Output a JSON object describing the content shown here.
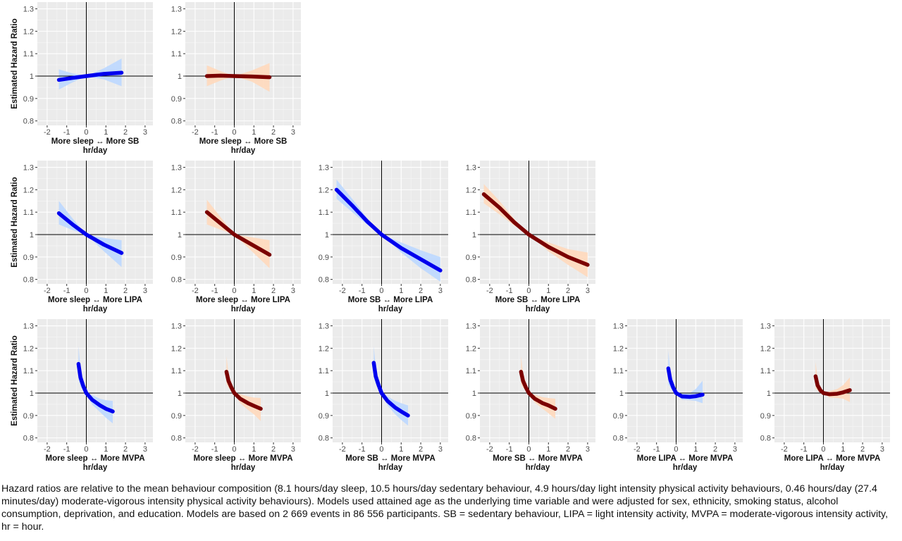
{
  "chart_data": [
    {
      "type": "line",
      "panel": "r1c1",
      "ylabel": "Estimated Hazard Ratio",
      "xlabel": "More sleep ↔ More SB",
      "xunit": "hr/day",
      "xlim": [
        -2.5,
        3.4
      ],
      "ylim": [
        0.78,
        1.33
      ],
      "xticks": [
        -2,
        -1,
        0,
        1,
        2,
        3
      ],
      "yticks": [
        0.8,
        0.9,
        1,
        1.1,
        1.2,
        1.3
      ],
      "color": "#0000ee",
      "band_color": "#bcd8ff",
      "x": [
        -1.4,
        -0.7,
        0,
        0.9,
        1.8
      ],
      "y": [
        0.983,
        0.992,
        1.0,
        1.01,
        1.015
      ],
      "lower": [
        0.94,
        0.972,
        1.0,
        0.985,
        0.955
      ],
      "upper": [
        1.03,
        1.012,
        1.0,
        1.035,
        1.078
      ]
    },
    {
      "type": "line",
      "panel": "r1c2",
      "ylabel": "",
      "xlabel": "More sleep ↔ More SB",
      "xunit": "hr/day",
      "xlim": [
        -2.5,
        3.4
      ],
      "ylim": [
        0.78,
        1.33
      ],
      "xticks": [
        -2,
        -1,
        0,
        1,
        2,
        3
      ],
      "yticks": [
        0.8,
        0.9,
        1,
        1.1,
        1.2,
        1.3
      ],
      "color": "#7b0000",
      "band_color": "#ffd9bd",
      "x": [
        -1.4,
        -0.7,
        0,
        0.9,
        1.8
      ],
      "y": [
        1.0,
        1.002,
        1.0,
        0.998,
        0.995
      ],
      "lower": [
        0.955,
        0.98,
        1.0,
        0.975,
        0.93
      ],
      "upper": [
        1.048,
        1.022,
        1.0,
        1.025,
        1.058
      ]
    },
    {
      "type": "line",
      "panel": "r2c1",
      "ylabel": "Estimated Hazard Ratio",
      "xlabel": "More sleep ↔ More LIPA",
      "xunit": "hr/day",
      "xlim": [
        -2.5,
        3.4
      ],
      "ylim": [
        0.78,
        1.33
      ],
      "xticks": [
        -2,
        -1,
        0,
        1,
        2,
        3
      ],
      "yticks": [
        0.8,
        0.9,
        1,
        1.1,
        1.2,
        1.3
      ],
      "color": "#0000ee",
      "band_color": "#bcd8ff",
      "x": [
        -1.4,
        -0.7,
        0,
        0.9,
        1.8
      ],
      "y": [
        1.095,
        1.045,
        1.0,
        0.955,
        0.918
      ],
      "lower": [
        1.045,
        1.02,
        1.0,
        0.925,
        0.855
      ],
      "upper": [
        1.15,
        1.072,
        1.0,
        0.985,
        0.975
      ]
    },
    {
      "type": "line",
      "panel": "r2c2",
      "ylabel": "",
      "xlabel": "More sleep ↔ More LIPA",
      "xunit": "hr/day",
      "xlim": [
        -2.5,
        3.4
      ],
      "ylim": [
        0.78,
        1.33
      ],
      "xticks": [
        -2,
        -1,
        0,
        1,
        2,
        3
      ],
      "yticks": [
        0.8,
        0.9,
        1,
        1.1,
        1.2,
        1.3
      ],
      "color": "#7b0000",
      "band_color": "#ffd9bd",
      "x": [
        -1.4,
        -0.7,
        0,
        0.9,
        1.8
      ],
      "y": [
        1.1,
        1.05,
        1.0,
        0.955,
        0.91
      ],
      "lower": [
        1.045,
        1.022,
        1.0,
        0.925,
        0.85
      ],
      "upper": [
        1.155,
        1.078,
        1.0,
        0.988,
        0.975
      ]
    },
    {
      "type": "line",
      "panel": "r2c3",
      "ylabel": "",
      "xlabel": "More SB ↔ More LIPA",
      "xunit": "hr/day",
      "xlim": [
        -2.5,
        3.4
      ],
      "ylim": [
        0.78,
        1.33
      ],
      "xticks": [
        -2,
        -1,
        0,
        1,
        2,
        3
      ],
      "yticks": [
        0.8,
        0.9,
        1,
        1.1,
        1.2,
        1.3
      ],
      "color": "#0000ee",
      "band_color": "#bcd8ff",
      "x": [
        -2.3,
        -1.5,
        -0.75,
        0,
        1,
        2,
        3
      ],
      "y": [
        1.2,
        1.13,
        1.06,
        1.0,
        0.94,
        0.89,
        0.84
      ],
      "lower": [
        1.16,
        1.1,
        1.045,
        1.0,
        0.92,
        0.85,
        0.79
      ],
      "upper": [
        1.245,
        1.16,
        1.075,
        1.0,
        0.965,
        0.93,
        0.9
      ]
    },
    {
      "type": "line",
      "panel": "r2c4",
      "ylabel": "",
      "xlabel": "More SB ↔ More LIPA",
      "xunit": "hr/day",
      "xlim": [
        -2.5,
        3.4
      ],
      "ylim": [
        0.78,
        1.33
      ],
      "xticks": [
        -2,
        -1,
        0,
        1,
        2,
        3
      ],
      "yticks": [
        0.8,
        0.9,
        1,
        1.1,
        1.2,
        1.3
      ],
      "color": "#7b0000",
      "band_color": "#ffd9bd",
      "x": [
        -2.3,
        -1.5,
        -0.75,
        0,
        1,
        2,
        3
      ],
      "y": [
        1.18,
        1.12,
        1.055,
        1.0,
        0.945,
        0.9,
        0.865
      ],
      "lower": [
        1.14,
        1.09,
        1.04,
        1.0,
        0.925,
        0.865,
        0.81
      ],
      "upper": [
        1.225,
        1.15,
        1.07,
        1.0,
        0.965,
        0.935,
        0.92
      ]
    },
    {
      "type": "line",
      "panel": "r3c1",
      "ylabel": "Estimated Hazard Ratio",
      "xlabel": "More sleep ↔ More MVPA",
      "xunit": "hr/day",
      "xlim": [
        -2.5,
        3.4
      ],
      "ylim": [
        0.78,
        1.33
      ],
      "xticks": [
        -2,
        -1,
        0,
        1,
        2,
        3
      ],
      "yticks": [
        0.8,
        0.9,
        1,
        1.1,
        1.2,
        1.3
      ],
      "color": "#0000ee",
      "band_color": "#bcd8ff",
      "x": [
        -0.4,
        -0.3,
        -0.15,
        0,
        0.3,
        0.7,
        1.0,
        1.35
      ],
      "y": [
        1.13,
        1.07,
        1.03,
        1.0,
        0.97,
        0.945,
        0.93,
        0.918
      ],
      "lower": [
        1.06,
        1.03,
        1.01,
        1.0,
        0.948,
        0.915,
        0.89,
        0.865
      ],
      "upper": [
        1.21,
        1.11,
        1.05,
        1.0,
        0.99,
        0.975,
        0.968,
        0.965
      ]
    },
    {
      "type": "line",
      "panel": "r3c2",
      "ylabel": "",
      "xlabel": "More sleep ↔ More MVPA",
      "xunit": "hr/day",
      "xlim": [
        -2.5,
        3.4
      ],
      "ylim": [
        0.78,
        1.33
      ],
      "xticks": [
        -2,
        -1,
        0,
        1,
        2,
        3
      ],
      "yticks": [
        0.8,
        0.9,
        1,
        1.1,
        1.2,
        1.3
      ],
      "color": "#7b0000",
      "band_color": "#ffd9bd",
      "x": [
        -0.4,
        -0.3,
        -0.15,
        0,
        0.3,
        0.7,
        1.0,
        1.35
      ],
      "y": [
        1.095,
        1.055,
        1.025,
        1.0,
        0.975,
        0.955,
        0.943,
        0.93
      ],
      "lower": [
        1.04,
        1.025,
        1.01,
        1.0,
        0.955,
        0.925,
        0.905,
        0.875
      ],
      "upper": [
        1.165,
        1.09,
        1.045,
        1.0,
        0.995,
        0.985,
        0.98,
        0.978
      ]
    },
    {
      "type": "line",
      "panel": "r3c3",
      "ylabel": "",
      "xlabel": "More SB ↔ More MVPA",
      "xunit": "hr/day",
      "xlim": [
        -2.5,
        3.4
      ],
      "ylim": [
        0.78,
        1.33
      ],
      "xticks": [
        -2,
        -1,
        0,
        1,
        2,
        3
      ],
      "yticks": [
        0.8,
        0.9,
        1,
        1.1,
        1.2,
        1.3
      ],
      "color": "#0000ee",
      "band_color": "#bcd8ff",
      "x": [
        -0.4,
        -0.3,
        -0.15,
        0,
        0.3,
        0.7,
        1.0,
        1.35
      ],
      "y": [
        1.135,
        1.075,
        1.035,
        1.0,
        0.965,
        0.935,
        0.918,
        0.9
      ],
      "lower": [
        1.07,
        1.04,
        1.015,
        1.0,
        0.945,
        0.905,
        0.88,
        0.855
      ],
      "upper": [
        1.21,
        1.115,
        1.055,
        1.0,
        0.985,
        0.965,
        0.955,
        0.945
      ]
    },
    {
      "type": "line",
      "panel": "r3c4",
      "ylabel": "",
      "xlabel": "More SB ↔ More MVPA",
      "xunit": "hr/day",
      "xlim": [
        -2.5,
        3.4
      ],
      "ylim": [
        0.78,
        1.33
      ],
      "xticks": [
        -2,
        -1,
        0,
        1,
        2,
        3
      ],
      "yticks": [
        0.8,
        0.9,
        1,
        1.1,
        1.2,
        1.3
      ],
      "color": "#7b0000",
      "band_color": "#ffd9bd",
      "x": [
        -0.4,
        -0.3,
        -0.15,
        0,
        0.3,
        0.7,
        1.0,
        1.35
      ],
      "y": [
        1.095,
        1.055,
        1.025,
        1.0,
        0.975,
        0.955,
        0.945,
        0.93
      ],
      "lower": [
        1.04,
        1.025,
        1.01,
        1.0,
        0.958,
        0.93,
        0.91,
        0.885
      ],
      "upper": [
        1.165,
        1.09,
        1.045,
        1.0,
        0.992,
        0.982,
        0.978,
        0.975
      ]
    },
    {
      "type": "line",
      "panel": "r3c5",
      "ylabel": "",
      "xlabel": "More LIPA ↔ More MVPA",
      "xunit": "hr/day",
      "xlim": [
        -2.5,
        3.4
      ],
      "ylim": [
        0.78,
        1.33
      ],
      "xticks": [
        -2,
        -1,
        0,
        1,
        2,
        3
      ],
      "yticks": [
        0.8,
        0.9,
        1,
        1.1,
        1.2,
        1.3
      ],
      "color": "#0000ee",
      "band_color": "#bcd8ff",
      "x": [
        -0.4,
        -0.3,
        -0.15,
        0,
        0.3,
        0.7,
        1.0,
        1.35
      ],
      "y": [
        1.11,
        1.06,
        1.025,
        1.0,
        0.985,
        0.983,
        0.986,
        0.993
      ],
      "lower": [
        1.04,
        1.025,
        1.008,
        1.0,
        0.97,
        0.968,
        0.965,
        0.955
      ],
      "upper": [
        1.19,
        1.1,
        1.045,
        1.0,
        0.998,
        1.0,
        1.018,
        1.055
      ]
    },
    {
      "type": "line",
      "panel": "r3c6",
      "ylabel": "",
      "xlabel": "More LIPA ↔ More MVPA",
      "xunit": "hr/day",
      "xlim": [
        -2.5,
        3.4
      ],
      "ylim": [
        0.78,
        1.33
      ],
      "xticks": [
        -2,
        -1,
        0,
        1,
        2,
        3
      ],
      "yticks": [
        0.8,
        0.9,
        1,
        1.1,
        1.2,
        1.3
      ],
      "color": "#7b0000",
      "band_color": "#ffd9bd",
      "x": [
        -0.4,
        -0.3,
        -0.15,
        0,
        0.3,
        0.7,
        1.0,
        1.35
      ],
      "y": [
        1.075,
        1.035,
        1.012,
        1.0,
        0.995,
        0.997,
        1.003,
        1.013
      ],
      "lower": [
        1.02,
        1.012,
        1.0,
        1.0,
        0.98,
        0.978,
        0.975,
        0.96
      ],
      "upper": [
        1.14,
        1.065,
        1.025,
        1.0,
        1.008,
        1.018,
        1.035,
        1.07
      ]
    }
  ],
  "caption": "Hazard ratios are relative to the mean behaviour composition (8.1 hours/day sleep, 10.5 hours/day sedentary behaviour, 4.9 hours/day light intensity physical activity behaviours, 0.46 hours/day (27.4 minutes/day) moderate-vigorous intensity physical activity behaviours). Models used attained age as the underlying time variable and were adjusted for sex, ethnicity, smoking status, alcohol consumption, deprivation, and education. Models are based on 2 669 events in 86 556 participants. SB = sedentary behaviour, LIPA = light intensity activity, MVPA = moderate-vigorous intensity activity, hr = hour."
}
